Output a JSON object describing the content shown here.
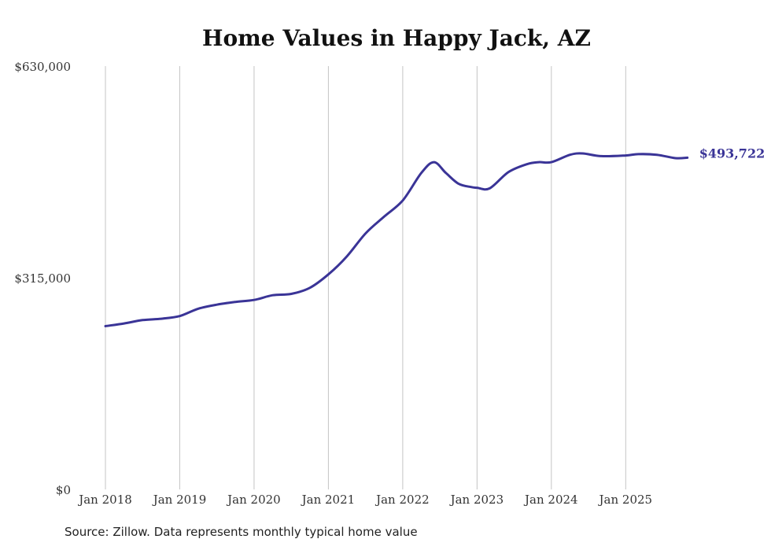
{
  "chart_data": {
    "type": "line",
    "title": "Home Values in Happy Jack, AZ",
    "xlabel": "",
    "ylabel": "",
    "ylim": [
      0,
      630000
    ],
    "y_ticks": [
      {
        "value": 0,
        "label": "$0"
      },
      {
        "value": 315000,
        "label": "$315,000"
      },
      {
        "value": 630000,
        "label": "$630,000"
      }
    ],
    "x_ticks": [
      {
        "value": 2018,
        "label": "Jan 2018"
      },
      {
        "value": 2019,
        "label": "Jan 2019"
      },
      {
        "value": 2020,
        "label": "Jan 2020"
      },
      {
        "value": 2021,
        "label": "Jan 2021"
      },
      {
        "value": 2022,
        "label": "Jan 2022"
      },
      {
        "value": 2023,
        "label": "Jan 2023"
      },
      {
        "value": 2024,
        "label": "Jan 2024"
      },
      {
        "value": 2025,
        "label": "Jan 2025"
      }
    ],
    "xlim": [
      2018,
      2025.833
    ],
    "grid": "vertical",
    "series": [
      {
        "name": "Typical home value",
        "color": "#3a3497",
        "end_label": "$493,722",
        "points": [
          [
            2018.0,
            243000
          ],
          [
            2018.25,
            247000
          ],
          [
            2018.5,
            252000
          ],
          [
            2018.75,
            254000
          ],
          [
            2019.0,
            258000
          ],
          [
            2019.25,
            269000
          ],
          [
            2019.5,
            275000
          ],
          [
            2019.75,
            279000
          ],
          [
            2020.0,
            282000
          ],
          [
            2020.25,
            289000
          ],
          [
            2020.5,
            291000
          ],
          [
            2020.75,
            300000
          ],
          [
            2021.0,
            320000
          ],
          [
            2021.25,
            347000
          ],
          [
            2021.5,
            381000
          ],
          [
            2021.75,
            406000
          ],
          [
            2022.0,
            430000
          ],
          [
            2022.25,
            471000
          ],
          [
            2022.42,
            487000
          ],
          [
            2022.58,
            471000
          ],
          [
            2022.75,
            455000
          ],
          [
            2022.92,
            450000
          ],
          [
            2023.0,
            449000
          ],
          [
            2023.17,
            448000
          ],
          [
            2023.42,
            472000
          ],
          [
            2023.67,
            484000
          ],
          [
            2023.83,
            487000
          ],
          [
            2024.0,
            487000
          ],
          [
            2024.25,
            498000
          ],
          [
            2024.42,
            500000
          ],
          [
            2024.67,
            496000
          ],
          [
            2025.0,
            497000
          ],
          [
            2025.17,
            499000
          ],
          [
            2025.42,
            498000
          ],
          [
            2025.67,
            493000
          ],
          [
            2025.83,
            493722
          ]
        ]
      }
    ]
  },
  "footer": {
    "source": "Source: Zillow. Data represents monthly typical home value"
  }
}
